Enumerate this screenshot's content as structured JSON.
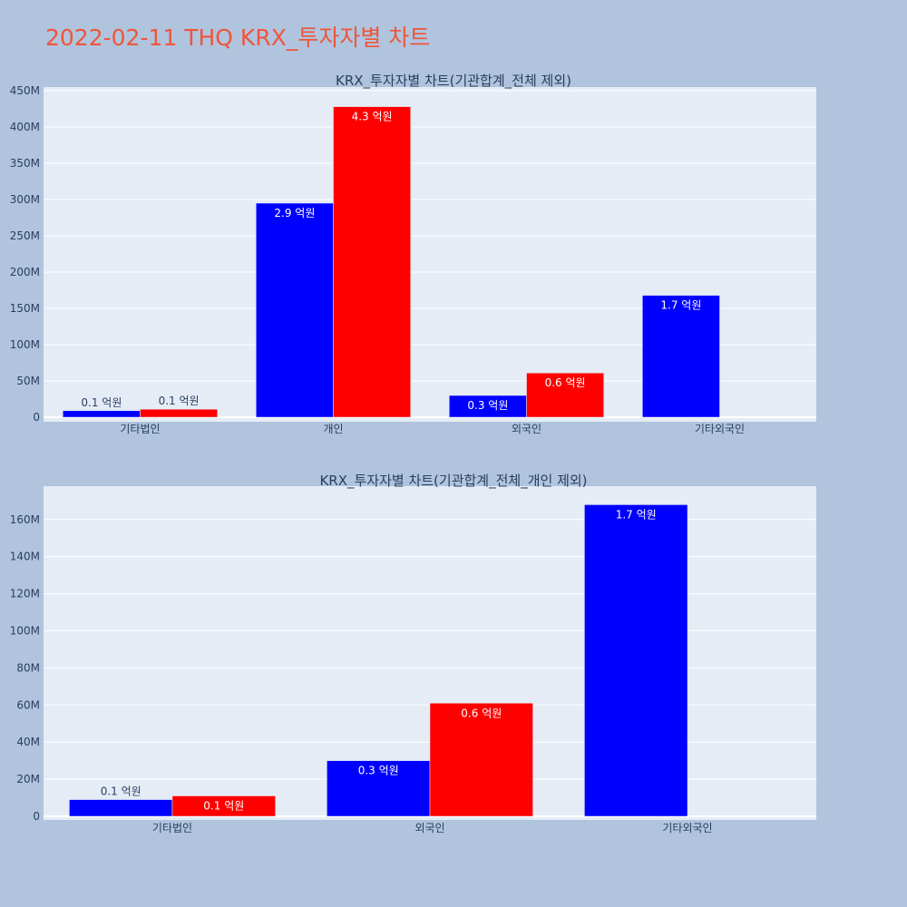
{
  "title": "2022-02-11 THQ KRX_투자자별 차트",
  "chart_data": [
    {
      "type": "bar",
      "title": "KRX_투자자별 차트(기관합계_전체 제외)",
      "categories": [
        "기타법인",
        "개인",
        "외국인",
        "기타외국인"
      ],
      "series": [
        {
          "color": "#0000ff",
          "values": [
            9000000,
            295000000,
            30000000,
            168000000
          ],
          "labels": [
            "0.1 억원",
            "2.9 억원",
            "0.3 억원",
            "1.7 억원"
          ]
        },
        {
          "color": "#ff0000",
          "values": [
            11000000,
            428000000,
            61000000,
            null
          ],
          "labels": [
            "0.1 억원",
            "4.3 억원",
            "0.6 억원",
            null
          ]
        }
      ],
      "yticks": [
        0,
        50000000,
        100000000,
        150000000,
        200000000,
        250000000,
        300000000,
        350000000,
        400000000,
        450000000
      ],
      "ytick_labels": [
        "0",
        "50M",
        "100M",
        "150M",
        "200M",
        "250M",
        "300M",
        "350M",
        "400M",
        "450M"
      ],
      "ylim": [
        0,
        455000000
      ],
      "grid": true
    },
    {
      "type": "bar",
      "title": "KRX_투자자별 차트(기관합계_전체_개인 제외)",
      "categories": [
        "기타법인",
        "외국인",
        "기타외국인"
      ],
      "series": [
        {
          "color": "#0000ff",
          "values": [
            9000000,
            30000000,
            168000000
          ],
          "labels": [
            "0.1 억원",
            "0.3 억원",
            "1.7 억원"
          ]
        },
        {
          "color": "#ff0000",
          "values": [
            11000000,
            61000000,
            null
          ],
          "labels": [
            "0.1 억원",
            "0.6 억원",
            null
          ]
        }
      ],
      "yticks": [
        0,
        20000000,
        40000000,
        60000000,
        80000000,
        100000000,
        120000000,
        140000000,
        160000000
      ],
      "ytick_labels": [
        "0",
        "20M",
        "40M",
        "60M",
        "80M",
        "100M",
        "120M",
        "140M",
        "160M"
      ],
      "ylim": [
        0,
        178000000
      ],
      "grid": true
    }
  ]
}
